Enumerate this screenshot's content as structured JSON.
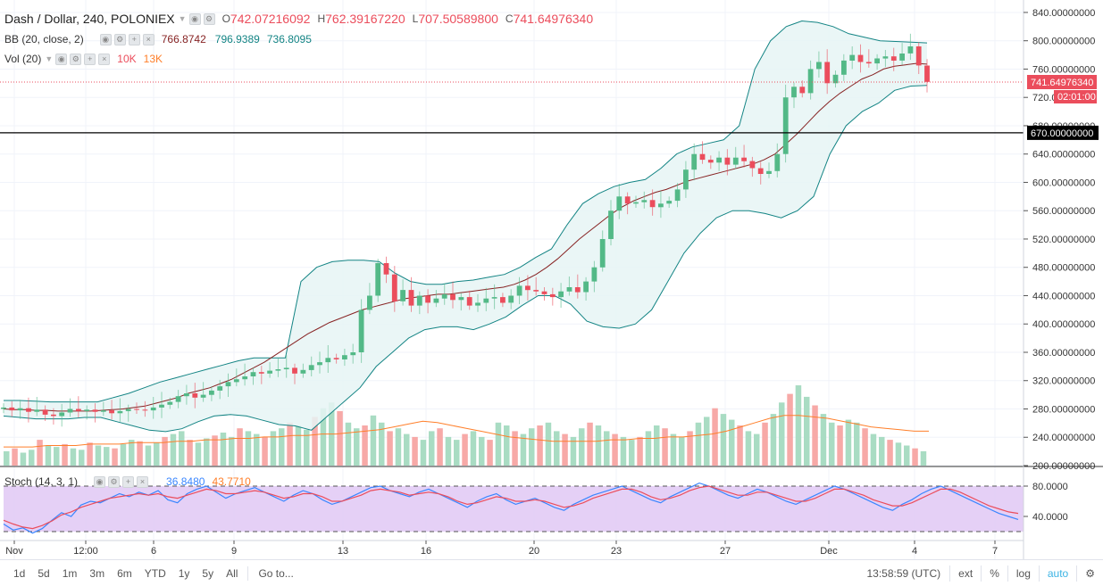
{
  "header": {
    "symbol": "Dash / Dollar, 240, POLONIEX",
    "o_label": "O",
    "o_value": "742.07216092",
    "h_label": "H",
    "h_value": "762.39167220",
    "l_label": "L",
    "l_value": "707.50589800",
    "c_label": "C",
    "c_value": "741.64976340"
  },
  "indicators": {
    "bb_label": "BB (20, close, 2)",
    "bb_basis": "766.8742",
    "bb_upper": "796.9389",
    "bb_lower": "736.8095",
    "vol_label": "Vol (20)",
    "vol_value": "10K",
    "vol_ma": "13K",
    "stoch_label": "Stoch (14, 3, 1)",
    "stoch_k": "36.8480",
    "stoch_d": "43.7710"
  },
  "colors": {
    "up": "#53b987",
    "down": "#eb4d5c",
    "up_vol": "#a9dcc3",
    "down_vol": "#f7a9a7",
    "bb_basis": "#872323",
    "bb_band": "#138484",
    "bb_fill": "#e6f4f4",
    "vol_ma": "#ff7f2a",
    "stoch_k": "#3a86ff",
    "stoch_d": "#eb4d5c",
    "stoch_bg": "#e1c8f4",
    "price_line": "#eb4d5c",
    "hline": "#000000"
  },
  "axis": {
    "price_ticks": [
      "840.00000000",
      "800.00000000",
      "760.00000000",
      "720.00000000",
      "680.00000000",
      "640.00000000",
      "600.00000000",
      "560.00000000",
      "520.00000000",
      "480.00000000",
      "440.00000000",
      "400.00000000",
      "360.00000000",
      "320.00000000",
      "280.00000000",
      "240.00000000",
      "200.00000000"
    ],
    "stoch_ticks": [
      "80.0000",
      "40.0000"
    ],
    "x_labels": [
      "Nov",
      "12:00",
      "6",
      "9",
      "13",
      "16",
      "20",
      "23",
      "27",
      "Dec",
      "4",
      "7"
    ],
    "last_price": "741.64976340",
    "countdown": "02:01:00",
    "hline_value": "670.00000000"
  },
  "chart_data": [
    {
      "type": "candlestick",
      "title": "Dash / Dollar, 240, POLONIEX",
      "y_range": [
        200,
        850
      ],
      "x_labels": [
        "Nov",
        "12:00",
        "6",
        "9",
        "13",
        "16",
        "20",
        "23",
        "27",
        "Dec",
        "4",
        "7"
      ],
      "close": [
        282,
        278,
        281,
        276,
        279,
        272,
        270,
        275,
        280,
        277,
        279,
        276,
        278,
        274,
        277,
        280,
        279,
        278,
        282,
        286,
        290,
        298,
        302,
        296,
        300,
        306,
        312,
        318,
        322,
        326,
        332,
        330,
        334,
        336,
        338,
        330,
        335,
        342,
        346,
        352,
        350,
        356,
        360,
        420,
        440,
        486,
        470,
        432,
        448,
        426,
        440,
        430,
        436,
        442,
        434,
        438,
        426,
        430,
        436,
        438,
        430,
        440,
        454,
        448,
        446,
        442,
        438,
        446,
        452,
        445,
        460,
        480,
        520,
        560,
        580,
        570,
        572,
        575,
        565,
        570,
        574,
        590,
        618,
        640,
        632,
        628,
        635,
        625,
        635,
        630,
        620,
        612,
        616,
        640,
        720,
        735,
        726,
        760,
        770,
        740,
        752,
        772,
        780,
        770,
        768,
        775,
        778,
        772,
        782,
        792,
        765,
        742
      ],
      "horizontal_line": 670,
      "last_price": 741.6497634,
      "bb_basis": [
        280,
        279,
        279,
        278,
        278,
        277,
        277,
        277,
        277,
        278,
        279,
        280,
        282,
        284,
        288,
        292,
        296,
        302,
        306,
        310,
        316,
        322,
        330,
        338,
        346,
        356,
        366,
        376,
        386,
        394,
        402,
        408,
        414,
        420,
        424,
        428,
        432,
        436,
        438,
        440,
        442,
        442,
        444,
        446,
        448,
        450,
        452,
        456,
        462,
        470,
        480,
        492,
        506,
        520,
        532,
        544,
        556,
        566,
        574,
        580,
        586,
        590,
        596,
        602,
        606,
        610,
        614,
        618,
        622,
        626,
        632,
        640,
        654,
        668,
        684,
        700,
        714,
        726,
        736,
        746,
        752,
        760,
        764,
        766,
        768,
        767
      ],
      "bb_upper": [
        292,
        292,
        291,
        290,
        290,
        290,
        290,
        296,
        302,
        310,
        318,
        324,
        330,
        336,
        342,
        348,
        352,
        352,
        352,
        460,
        480,
        488,
        490,
        490,
        488,
        472,
        460,
        456,
        456,
        460,
        462,
        466,
        470,
        480,
        494,
        506,
        540,
        570,
        584,
        594,
        600,
        604,
        620,
        640,
        650,
        655,
        660,
        680,
        760,
        800,
        820,
        828,
        826,
        820,
        810,
        805,
        800,
        799,
        798,
        797
      ],
      "bb_lower": [
        270,
        268,
        266,
        266,
        266,
        268,
        268,
        262,
        256,
        250,
        248,
        252,
        262,
        270,
        272,
        270,
        264,
        258,
        256,
        250,
        270,
        290,
        310,
        340,
        360,
        380,
        392,
        396,
        396,
        392,
        400,
        410,
        426,
        440,
        440,
        428,
        404,
        396,
        394,
        400,
        420,
        460,
        500,
        528,
        550,
        560,
        560,
        556,
        550,
        560,
        580,
        640,
        680,
        700,
        712,
        730,
        736,
        737
      ]
    },
    {
      "type": "bar",
      "title": "Vol (20)",
      "values_k": [
        10,
        12,
        9,
        11,
        18,
        14,
        13,
        15,
        12,
        11,
        16,
        14,
        13,
        12,
        15,
        18,
        17,
        14,
        16,
        20,
        22,
        24,
        18,
        16,
        19,
        21,
        23,
        20,
        26,
        24,
        22,
        20,
        24,
        26,
        30,
        28,
        25,
        34,
        40,
        44,
        38,
        30,
        26,
        28,
        35,
        30,
        24,
        26,
        22,
        20,
        18,
        24,
        26,
        20,
        18,
        22,
        24,
        20,
        18,
        30,
        28,
        24,
        22,
        26,
        28,
        30,
        24,
        22,
        20,
        26,
        30,
        28,
        24,
        22,
        20,
        18,
        20,
        24,
        28,
        26,
        22,
        20,
        24,
        30,
        34,
        40,
        36,
        32,
        28,
        24,
        22,
        30,
        36,
        44,
        50,
        56,
        48,
        42,
        36,
        30,
        28,
        32,
        30,
        26,
        22,
        20,
        18,
        16,
        14,
        12,
        10
      ],
      "ma_k": [
        13,
        13,
        13,
        14,
        14,
        14,
        15,
        15,
        15,
        16,
        16,
        16,
        17,
        17,
        18,
        18,
        19,
        19,
        20,
        20,
        21,
        21,
        22,
        22,
        23,
        24,
        25,
        27,
        29,
        31,
        30,
        28,
        26,
        24,
        22,
        20,
        19,
        18,
        17,
        17,
        17,
        17,
        18,
        18,
        19,
        19,
        20,
        20,
        21,
        22,
        24,
        27,
        30,
        33,
        35,
        35,
        34,
        33,
        31,
        29,
        27,
        26,
        25,
        24,
        24
      ]
    },
    {
      "type": "line",
      "title": "Stoch (14, 3, 1)",
      "y_range": [
        0,
        100
      ],
      "bands": [
        80,
        20
      ],
      "series": [
        {
          "name": "%K",
          "values": [
            30,
            22,
            25,
            18,
            24,
            35,
            45,
            40,
            55,
            60,
            58,
            64,
            70,
            66,
            72,
            68,
            74,
            62,
            58,
            70,
            76,
            80,
            72,
            64,
            70,
            74,
            78,
            72,
            66,
            60,
            68,
            74,
            70,
            62,
            56,
            60,
            66,
            72,
            78,
            80,
            74,
            70,
            66,
            72,
            76,
            70,
            64,
            58,
            52,
            60,
            66,
            70,
            62,
            56,
            60,
            64,
            58,
            52,
            48,
            56,
            62,
            68,
            72,
            76,
            80,
            74,
            68,
            62,
            58,
            66,
            72,
            78,
            84,
            80,
            74,
            68,
            64,
            70,
            76,
            72,
            66,
            60,
            56,
            62,
            68,
            74,
            80,
            76,
            70,
            64,
            58,
            52,
            48,
            56,
            62,
            70,
            76,
            80,
            74,
            68,
            62,
            56,
            50,
            44,
            40,
            36
          ]
        },
        {
          "name": "%D",
          "values": [
            35,
            30,
            26,
            24,
            28,
            34,
            42,
            46,
            52,
            56,
            60,
            64,
            66,
            68,
            70,
            68,
            70,
            66,
            64,
            68,
            72,
            76,
            74,
            70,
            70,
            72,
            74,
            72,
            68,
            64,
            66,
            70,
            70,
            66,
            60,
            60,
            64,
            68,
            74,
            76,
            74,
            72,
            68,
            70,
            72,
            70,
            66,
            60,
            56,
            58,
            62,
            66,
            64,
            60,
            60,
            62,
            60,
            56,
            52,
            54,
            58,
            64,
            68,
            72,
            76,
            76,
            72,
            66,
            62,
            64,
            68,
            74,
            78,
            80,
            76,
            72,
            68,
            68,
            72,
            72,
            68,
            64,
            60,
            60,
            64,
            70,
            76,
            76,
            72,
            68,
            62,
            58,
            54,
            54,
            58,
            64,
            70,
            76,
            76,
            72,
            66,
            60,
            54,
            50,
            46,
            44
          ]
        }
      ]
    }
  ],
  "toolbar": {
    "timeframes": [
      "1d",
      "5d",
      "1m",
      "3m",
      "6m",
      "YTD",
      "1y",
      "5y",
      "All",
      "Go to..."
    ],
    "clock": "13:58:59 (UTC)",
    "tools": [
      "ext",
      "%",
      "log",
      "auto"
    ]
  }
}
